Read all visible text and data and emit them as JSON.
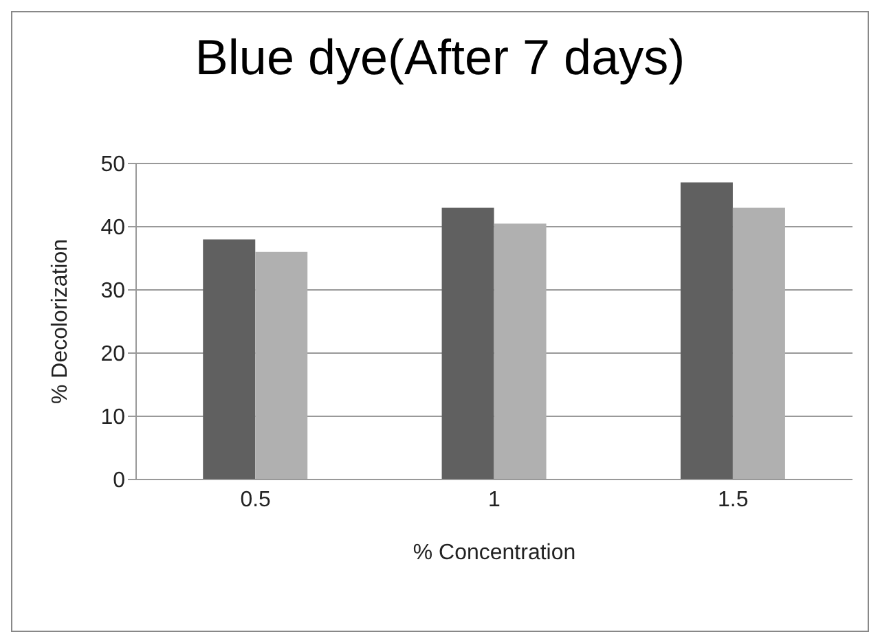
{
  "chart_data": {
    "type": "bar",
    "title": "Blue dye(After 7 days)",
    "xlabel": "% Concentration",
    "ylabel": "% Decolorization",
    "categories": [
      "0.5",
      "1",
      "1.5"
    ],
    "series": [
      {
        "color": "#606060",
        "values": [
          38,
          43,
          47
        ]
      },
      {
        "color": "#b0b0b0",
        "values": [
          36,
          40.5,
          43
        ]
      }
    ],
    "ylim": [
      0,
      50
    ],
    "yticks": [
      0,
      10,
      20,
      30,
      40,
      50
    ],
    "grid": "y"
  }
}
